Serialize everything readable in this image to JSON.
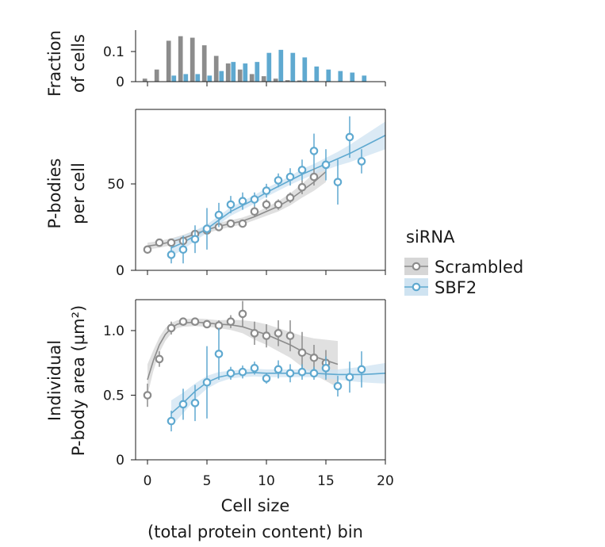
{
  "colors": {
    "scrambled": "#8c8c8c",
    "sbf2": "#5fa9d0",
    "scrambled_band": "#d6d6d6",
    "sbf2_band": "#cfe3f1",
    "axis": "#1a1a1a"
  },
  "legend": {
    "title": "siRNA",
    "items": [
      {
        "key": "scrambled",
        "label": "Scrambled"
      },
      {
        "key": "sbf2",
        "label": "SBF2"
      }
    ]
  },
  "x_axis": {
    "label_line1": "Cell size",
    "label_line2": "(total protein content) bin",
    "xlim": [
      -1,
      20
    ],
    "ticks": [
      0,
      5,
      10,
      15,
      20
    ],
    "tick_labels": [
      "0",
      "5",
      "10",
      "15",
      "20"
    ]
  },
  "chart_data": [
    {
      "type": "bar",
      "id": "histogram",
      "ylabel_line1": "Fraction",
      "ylabel_line2": "of cells",
      "ylim": [
        0,
        0.17
      ],
      "yticks": [
        0,
        0.1
      ],
      "ytick_labels": [
        "0",
        "0.1"
      ],
      "series": [
        {
          "name": "Scrambled",
          "x": [
            0,
            1,
            2,
            3,
            4,
            5,
            6,
            7,
            8,
            9,
            10,
            11,
            12,
            13,
            14,
            15,
            16,
            17,
            18
          ],
          "values": [
            0.01,
            0.04,
            0.135,
            0.15,
            0.145,
            0.12,
            0.085,
            0.06,
            0.04,
            0.025,
            0.018,
            0.01,
            0.005,
            0.004,
            0.002,
            0,
            0,
            0,
            0
          ]
        },
        {
          "name": "SBF2",
          "x": [
            0,
            1,
            2,
            3,
            4,
            5,
            6,
            7,
            8,
            9,
            10,
            11,
            12,
            13,
            14,
            15,
            16,
            17,
            18
          ],
          "values": [
            0,
            0,
            0.02,
            0.025,
            0.025,
            0.02,
            0.035,
            0.065,
            0.06,
            0.065,
            0.095,
            0.105,
            0.095,
            0.08,
            0.05,
            0.04,
            0.035,
            0.03,
            0.02
          ]
        }
      ]
    },
    {
      "type": "scatter",
      "id": "pbodies",
      "ylabel_line1": "P-bodies",
      "ylabel_line2": "per cell",
      "ylim": [
        0,
        93
      ],
      "yticks": [
        0,
        50
      ],
      "ytick_labels": [
        "0",
        "50"
      ],
      "series": [
        {
          "name": "Scrambled",
          "x": [
            0,
            1,
            2,
            3,
            4,
            5,
            6,
            7,
            8,
            9,
            10,
            11,
            12,
            13,
            14
          ],
          "y": [
            12,
            16,
            16,
            17,
            21,
            23,
            25,
            27,
            27,
            34,
            38,
            38,
            42,
            48,
            54
          ],
          "err": [
            2,
            2,
            1,
            2,
            2,
            2,
            2,
            2,
            2,
            3,
            3,
            3,
            3,
            4,
            5
          ],
          "fit_x": [
            0,
            1,
            2,
            3,
            4,
            5,
            6,
            7,
            8,
            9,
            10,
            11,
            12,
            13,
            14,
            15
          ],
          "fit_y": [
            14,
            15,
            16.5,
            18.5,
            21,
            23.5,
            25.5,
            27,
            28.5,
            31,
            34,
            37,
            41,
            46,
            51,
            57
          ],
          "band": [
            2,
            2,
            2,
            2,
            2,
            2,
            2,
            2,
            2,
            2,
            2.5,
            3,
            3.5,
            4,
            5,
            6
          ]
        },
        {
          "name": "SBF2",
          "x": [
            2,
            3,
            4,
            5,
            6,
            7,
            8,
            9,
            10,
            11,
            12,
            13,
            14,
            15,
            16,
            17,
            18
          ],
          "y": [
            9,
            12,
            18,
            24,
            32,
            38,
            40,
            41,
            46,
            52,
            54,
            58,
            69,
            61,
            51,
            77,
            63
          ],
          "err": [
            5,
            8,
            8,
            12,
            7,
            5,
            5,
            4,
            4,
            4,
            5,
            6,
            10,
            9,
            13,
            12,
            7
          ],
          "fit_x": [
            2,
            3,
            4,
            5,
            6,
            7,
            8,
            9,
            10,
            11,
            12,
            13,
            14,
            15,
            16,
            17,
            18,
            19,
            20
          ],
          "fit_y": [
            13,
            16,
            20,
            24,
            29,
            34,
            37.5,
            41,
            45,
            48.5,
            52,
            55.5,
            58.5,
            61.5,
            64.5,
            67.5,
            71,
            74.5,
            78
          ],
          "band": [
            5,
            4,
            3,
            2.5,
            2.5,
            2.5,
            2.5,
            2.5,
            2.5,
            2.5,
            2.5,
            3,
            3,
            3.5,
            4,
            5,
            6,
            7,
            8
          ]
        }
      ]
    },
    {
      "type": "scatter",
      "id": "area",
      "ylabel_line1": "Individual",
      "ylabel_line2": "P-body area (µm²)",
      "ylim": [
        0,
        1.24
      ],
      "yticks": [
        0,
        0.5,
        1.0
      ],
      "ytick_labels": [
        "0",
        "0.5",
        "1.0"
      ],
      "series": [
        {
          "name": "Scrambled",
          "x": [
            0,
            1,
            2,
            3,
            4,
            5,
            6,
            7,
            8,
            9,
            10,
            11,
            12,
            13,
            14,
            15
          ],
          "y": [
            0.5,
            0.78,
            1.02,
            1.07,
            1.07,
            1.05,
            1.04,
            1.07,
            1.13,
            0.98,
            0.96,
            0.98,
            0.96,
            0.83,
            0.79,
            0.75
          ],
          "err": [
            0.09,
            0.06,
            0.05,
            0.03,
            0.03,
            0.03,
            0.04,
            0.05,
            0.1,
            0.09,
            0.09,
            0.1,
            0.12,
            0.16,
            0.1,
            0.1
          ],
          "fit_x": [
            0,
            0.5,
            1,
            1.5,
            2,
            2.5,
            3,
            4,
            5,
            6,
            7,
            8,
            9,
            10,
            11,
            12,
            13,
            14,
            15,
            16
          ],
          "fit_y": [
            0.62,
            0.77,
            0.89,
            0.97,
            1.02,
            1.05,
            1.06,
            1.065,
            1.06,
            1.05,
            1.045,
            1.03,
            1.0,
            0.97,
            0.93,
            0.89,
            0.84,
            0.8,
            0.77,
            0.74
          ],
          "band": [
            0.12,
            0.08,
            0.06,
            0.05,
            0.04,
            0.03,
            0.03,
            0.03,
            0.03,
            0.03,
            0.04,
            0.05,
            0.07,
            0.08,
            0.09,
            0.1,
            0.12,
            0.14,
            0.16,
            0.18
          ]
        },
        {
          "name": "SBF2",
          "x": [
            2,
            3,
            4,
            5,
            6,
            7,
            8,
            9,
            10,
            11,
            12,
            13,
            14,
            15,
            16,
            17,
            18
          ],
          "y": [
            0.3,
            0.43,
            0.44,
            0.6,
            0.82,
            0.67,
            0.68,
            0.71,
            0.63,
            0.7,
            0.67,
            0.68,
            0.67,
            0.71,
            0.57,
            0.64,
            0.7
          ],
          "err": [
            0.08,
            0.12,
            0.14,
            0.28,
            0.2,
            0.05,
            0.05,
            0.05,
            0.04,
            0.07,
            0.07,
            0.06,
            0.05,
            0.09,
            0.08,
            0.12,
            0.14
          ],
          "fit_x": [
            2,
            3,
            4,
            5,
            6,
            7,
            8,
            9,
            10,
            11,
            12,
            13,
            14,
            15,
            16,
            17,
            18,
            19,
            20
          ],
          "fit_y": [
            0.36,
            0.44,
            0.53,
            0.6,
            0.64,
            0.66,
            0.67,
            0.675,
            0.67,
            0.67,
            0.67,
            0.67,
            0.67,
            0.665,
            0.66,
            0.66,
            0.66,
            0.665,
            0.67
          ],
          "band": [
            0.1,
            0.08,
            0.06,
            0.05,
            0.04,
            0.03,
            0.03,
            0.03,
            0.03,
            0.03,
            0.03,
            0.03,
            0.03,
            0.035,
            0.04,
            0.05,
            0.06,
            0.07,
            0.08
          ]
        }
      ]
    }
  ]
}
